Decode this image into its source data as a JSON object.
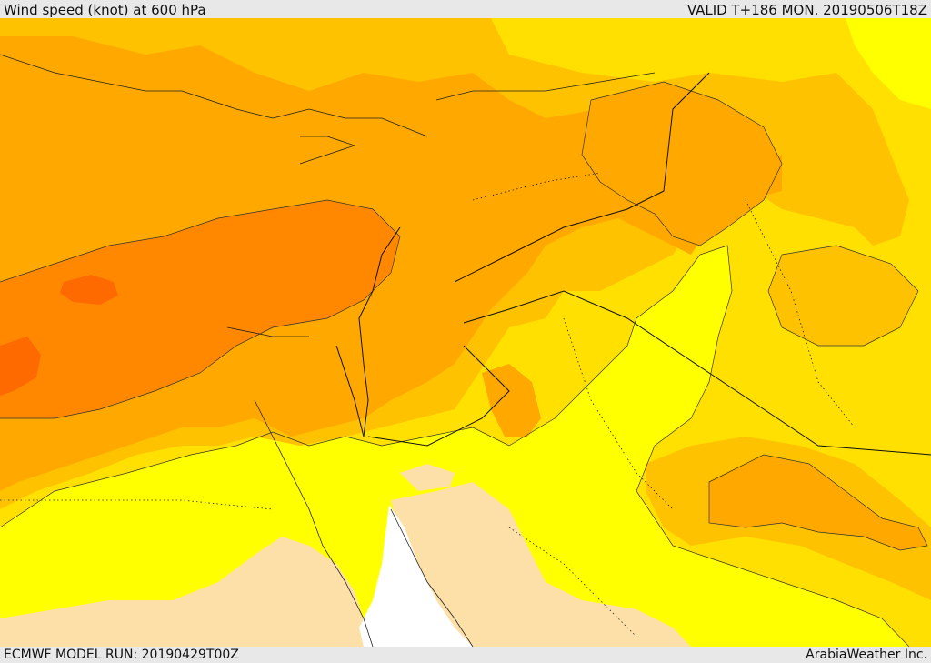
{
  "header": {
    "title": "Wind speed (knot) at 600 hPa",
    "valid": "VALID T+186 MON. 20190506T18Z"
  },
  "footer": {
    "model_run": "ECMWF MODEL RUN: 20190429T00Z",
    "credit": "ArabiaWeather Inc."
  },
  "colors": {
    "pale": "#fde0a8",
    "yellow": "#ffff00",
    "gold": "#ffe000",
    "amber": "#ffc200",
    "orange": "#ffa800",
    "dark_orange": "#ff8800",
    "red_orange": "#ff6a00",
    "sea": "#ffffff"
  }
}
